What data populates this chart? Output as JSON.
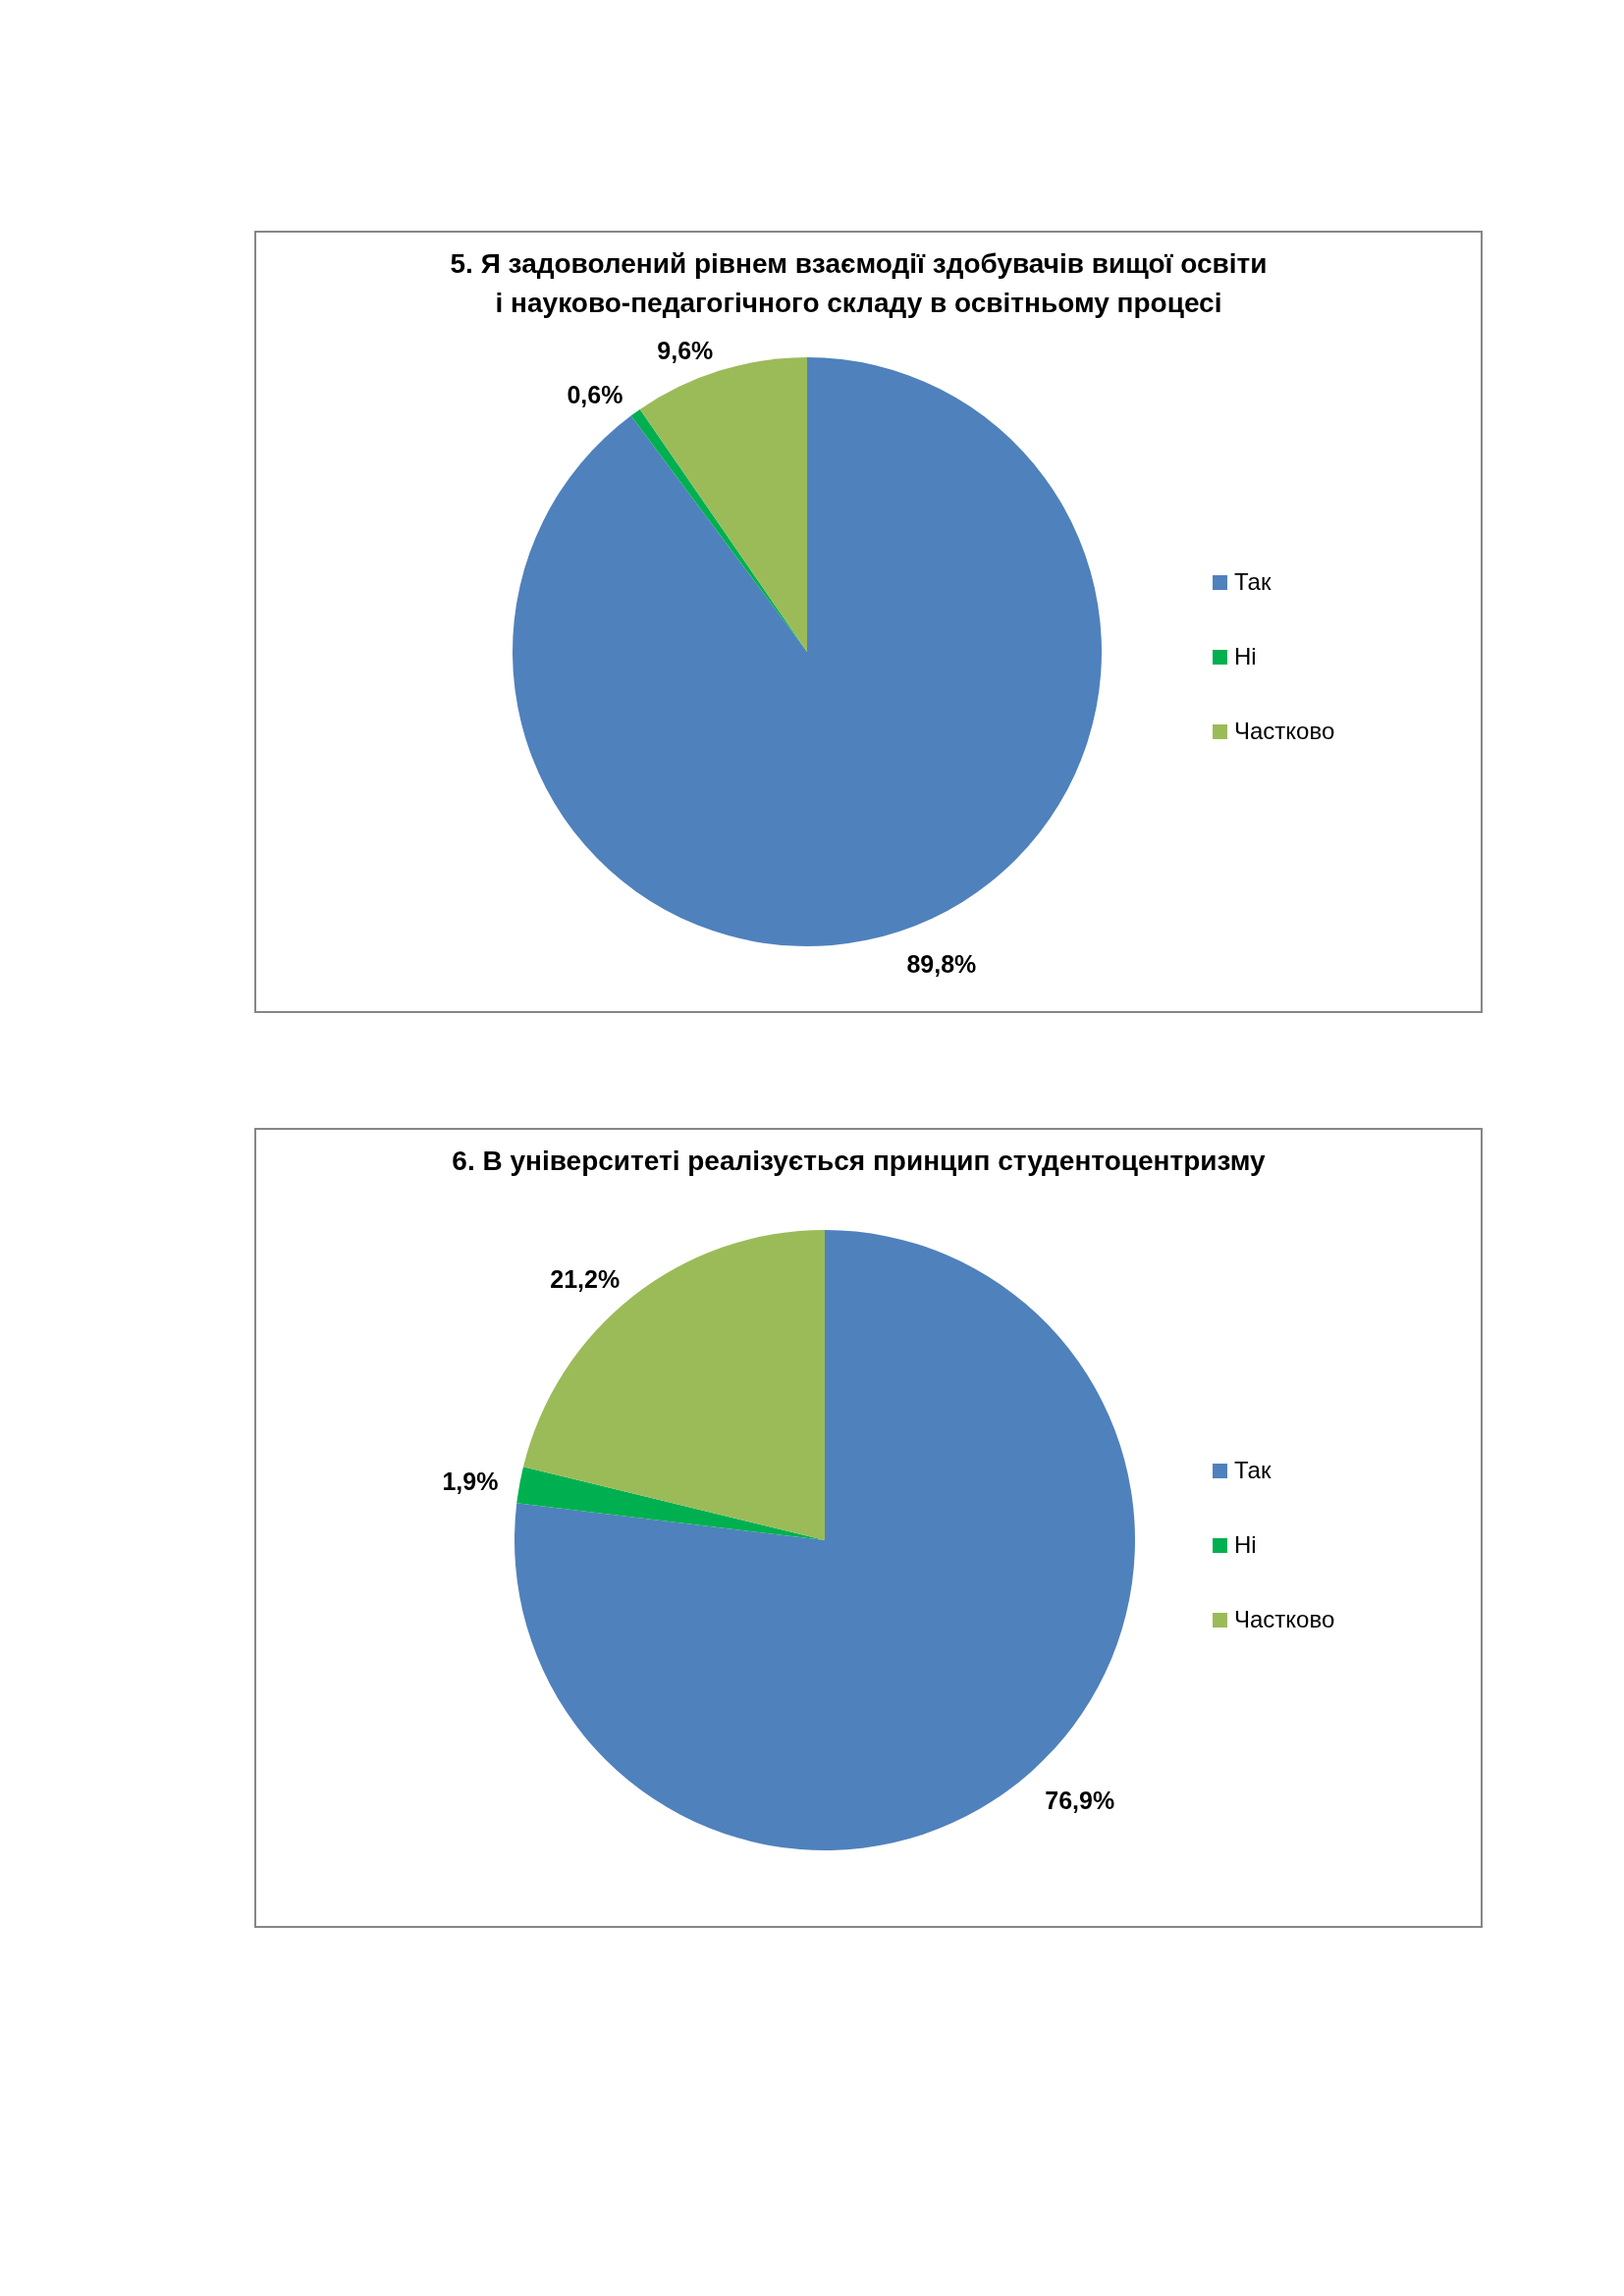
{
  "chart_data": [
    {
      "type": "pie",
      "title": "5. Я задоволений рівнем взаємодії здобувачів вищої освіти і науково-педагогічного складу в освітньому процесі",
      "categories": [
        "Так",
        "Ні",
        "Частково"
      ],
      "values": [
        89.8,
        0.6,
        9.6
      ],
      "colors": [
        "#4f81bd",
        "#00b050",
        "#9bbb59"
      ],
      "value_labels": [
        "89,8%",
        "0,6%",
        "9,6%"
      ],
      "legend": "right"
    },
    {
      "type": "pie",
      "title": "6. В університеті реалізується принцип студентоцентризму",
      "categories": [
        "Так",
        "Ні",
        "Частково"
      ],
      "values": [
        76.9,
        1.9,
        21.2
      ],
      "colors": [
        "#4f81bd",
        "#00b050",
        "#9bbb59"
      ],
      "value_labels": [
        "76,9%",
        "1,9%",
        "21,2%"
      ],
      "legend": "right"
    }
  ]
}
